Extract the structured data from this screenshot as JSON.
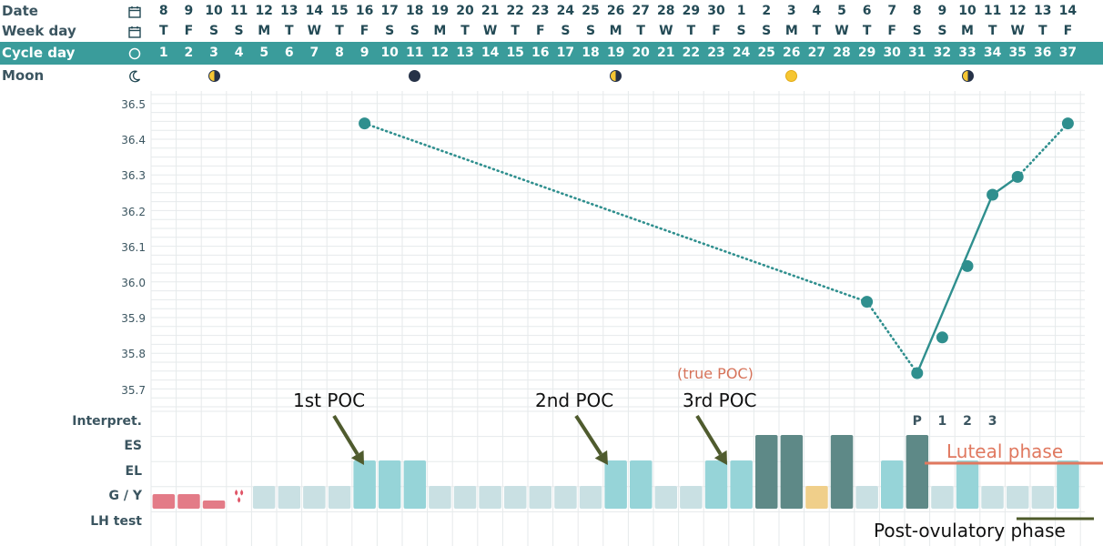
{
  "header": {
    "rows": {
      "date": "Date",
      "weekday": "Week day",
      "cycle_day": "Cycle day",
      "moon": "Moon"
    },
    "icons": {
      "date": "calendar-icon",
      "weekday": "calendar-icon",
      "cycle_day": "circle-icon",
      "moon": "crescent-moon-icon"
    },
    "dates": [
      "8",
      "9",
      "10",
      "11",
      "12",
      "13",
      "14",
      "15",
      "16",
      "17",
      "18",
      "19",
      "20",
      "21",
      "22",
      "23",
      "24",
      "25",
      "26",
      "27",
      "28",
      "29",
      "30",
      "1",
      "2",
      "3",
      "4",
      "5",
      "6",
      "7",
      "8",
      "9",
      "10",
      "11",
      "12",
      "13",
      "14"
    ],
    "weekdays": [
      "T",
      "F",
      "S",
      "S",
      "M",
      "T",
      "W",
      "T",
      "F",
      "S",
      "S",
      "M",
      "T",
      "W",
      "T",
      "F",
      "S",
      "S",
      "M",
      "T",
      "W",
      "T",
      "F",
      "S",
      "S",
      "M",
      "T",
      "W",
      "T",
      "F",
      "S",
      "S",
      "M",
      "T",
      "W",
      "T",
      "F"
    ],
    "cycle_days": [
      "1",
      "2",
      "3",
      "4",
      "5",
      "6",
      "7",
      "8",
      "9",
      "10",
      "11",
      "12",
      "13",
      "14",
      "15",
      "16",
      "17",
      "18",
      "19",
      "20",
      "21",
      "22",
      "23",
      "24",
      "25",
      "26",
      "27",
      "28",
      "29",
      "30",
      "31",
      "32",
      "33",
      "34",
      "35",
      "36",
      "37"
    ],
    "moon_phases": [
      {
        "cycle_day": 3,
        "phase": "last-quarter"
      },
      {
        "cycle_day": 11,
        "phase": "new"
      },
      {
        "cycle_day": 19,
        "phase": "first-quarter"
      },
      {
        "cycle_day": 26,
        "phase": "full"
      },
      {
        "cycle_day": 33,
        "phase": "last-quarter"
      }
    ]
  },
  "chart_data": {
    "type": "line",
    "title": "",
    "xlabel": "Cycle day",
    "ylabel": "",
    "x_range": [
      1,
      37
    ],
    "ylim": [
      35.65,
      36.55
    ],
    "yticks": [
      "35.7",
      "35.8",
      "35.9",
      "36.0",
      "36.1",
      "36.2",
      "36.3",
      "36.4",
      "36.5"
    ],
    "grid": true,
    "series": [
      {
        "points": [
          {
            "x": 9,
            "y": 36.45
          },
          {
            "x": 29,
            "y": 35.95
          },
          {
            "x": 31,
            "y": 35.75
          },
          {
            "x": 32,
            "y": 35.85
          },
          {
            "x": 33,
            "y": 36.05
          },
          {
            "x": 34,
            "y": 36.25
          },
          {
            "x": 35,
            "y": 36.3
          },
          {
            "x": 37,
            "y": 36.45
          }
        ],
        "segments": [
          {
            "from": 9,
            "to": 29,
            "style": "dotted"
          },
          {
            "from": 29,
            "to": 31,
            "style": "dotted"
          },
          {
            "from": 31,
            "to": 34,
            "style": "solid"
          },
          {
            "from": 34,
            "to": 35,
            "style": "solid"
          },
          {
            "from": 35,
            "to": 37,
            "style": "dotted"
          }
        ]
      }
    ]
  },
  "observations": {
    "row_labels": [
      "Interpret.",
      "ES",
      "EL",
      "G / Y",
      "LH test"
    ],
    "interpretations": [
      {
        "cycle_day": 31,
        "label": "P"
      },
      {
        "cycle_day": 32,
        "label": "1"
      },
      {
        "cycle_day": 33,
        "label": "2"
      },
      {
        "cycle_day": 34,
        "label": "3"
      }
    ],
    "bars": [
      {
        "day": 1,
        "type": "bleed"
      },
      {
        "day": 2,
        "type": "bleed"
      },
      {
        "day": 3,
        "type": "bleed-light"
      },
      {
        "day": 4,
        "type": "spotting"
      },
      {
        "day": 5,
        "type": "dry"
      },
      {
        "day": 6,
        "type": "dry"
      },
      {
        "day": 7,
        "type": "dry"
      },
      {
        "day": 8,
        "type": "dry"
      },
      {
        "day": 9,
        "type": "el"
      },
      {
        "day": 10,
        "type": "el"
      },
      {
        "day": 11,
        "type": "el"
      },
      {
        "day": 12,
        "type": "dry"
      },
      {
        "day": 13,
        "type": "dry"
      },
      {
        "day": 14,
        "type": "dry"
      },
      {
        "day": 15,
        "type": "dry"
      },
      {
        "day": 16,
        "type": "dry"
      },
      {
        "day": 17,
        "type": "dry"
      },
      {
        "day": 18,
        "type": "dry"
      },
      {
        "day": 19,
        "type": "el"
      },
      {
        "day": 20,
        "type": "el"
      },
      {
        "day": 21,
        "type": "dry"
      },
      {
        "day": 22,
        "type": "dry"
      },
      {
        "day": 23,
        "type": "el"
      },
      {
        "day": 24,
        "type": "el"
      },
      {
        "day": 25,
        "type": "es"
      },
      {
        "day": 26,
        "type": "es"
      },
      {
        "day": 27,
        "type": "yellow"
      },
      {
        "day": 28,
        "type": "es"
      },
      {
        "day": 29,
        "type": "dry"
      },
      {
        "day": 30,
        "type": "el"
      },
      {
        "day": 31,
        "type": "es"
      },
      {
        "day": 32,
        "type": "dry"
      },
      {
        "day": 33,
        "type": "el"
      },
      {
        "day": 34,
        "type": "dry"
      },
      {
        "day": 35,
        "type": "dry"
      },
      {
        "day": 36,
        "type": "dry"
      },
      {
        "day": 37,
        "type": "el"
      }
    ],
    "colors": {
      "bleed": "#e37b87",
      "spotting": "#e05567",
      "dry": "#c9e0e3",
      "el": "#96d4d8",
      "es": "#5e8987",
      "yellow": "#f0cf8a",
      "line": "#2f8f8e",
      "grid": "#e6eaeb",
      "arrow": "#4f5b2e",
      "luteal": "#e0785f",
      "postov": "#4d5a2a"
    }
  },
  "annotations": {
    "poc1": "1st POC",
    "poc2": "2nd POC",
    "poc3": "3rd POC",
    "true_poc": "(true POC)",
    "luteal": "Luteal phase",
    "post_ovulatory": "Post-ovulatory phase"
  }
}
